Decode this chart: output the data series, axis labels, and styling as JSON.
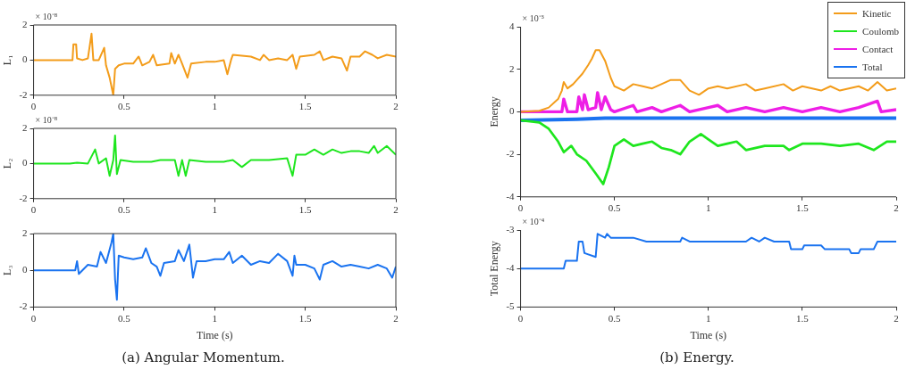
{
  "chart_data": [
    {
      "type": "line",
      "ylabel": "L₁",
      "annotations": [
        "× 10⁻⁸"
      ],
      "xlim": [
        0,
        2
      ],
      "xticks": [
        0,
        0.5,
        1,
        1.5,
        2
      ],
      "ylim": [
        -2,
        2
      ],
      "yticks": [
        -2,
        0,
        2
      ],
      "grid": false,
      "legend": false,
      "marker": "none",
      "line_style": "solid",
      "series": [
        {
          "color": "#f39c1a",
          "x": [
            0,
            0.2,
            0.215,
            0.22,
            0.235,
            0.24,
            0.27,
            0.3,
            0.32,
            0.33,
            0.36,
            0.39,
            0.4,
            0.42,
            0.44,
            0.45,
            0.47,
            0.5,
            0.55,
            0.58,
            0.6,
            0.64,
            0.66,
            0.68,
            0.75,
            0.76,
            0.78,
            0.8,
            0.82,
            0.85,
            0.87,
            0.95,
            1,
            1.05,
            1.07,
            1.09,
            1.1,
            1.2,
            1.25,
            1.27,
            1.3,
            1.35,
            1.4,
            1.43,
            1.45,
            1.47,
            1.55,
            1.58,
            1.6,
            1.65,
            1.7,
            1.73,
            1.75,
            1.8,
            1.83,
            1.87,
            1.9,
            1.95,
            2
          ],
          "values": [
            0,
            0,
            0,
            0.9,
            0.9,
            0.1,
            0,
            0.1,
            1.5,
            0,
            0,
            0.7,
            -0.3,
            -1,
            -2,
            -0.5,
            -0.3,
            -0.2,
            -0.2,
            0.2,
            -0.3,
            -0.1,
            0.3,
            -0.3,
            -0.2,
            0.4,
            -0.2,
            0.3,
            -0.2,
            -1,
            -0.2,
            -0.1,
            -0.1,
            0,
            -0.8,
            0,
            0.3,
            0.2,
            0,
            0.3,
            0,
            0.1,
            0,
            0.3,
            -0.5,
            0.2,
            0.3,
            0.5,
            0,
            0.2,
            0.1,
            -0.6,
            0.2,
            0.2,
            0.5,
            0.3,
            0.1,
            0.3,
            0.2
          ]
        }
      ]
    },
    {
      "type": "line",
      "ylabel": "L₂",
      "annotations": [
        "× 10⁻⁸"
      ],
      "xlim": [
        0,
        2
      ],
      "xticks": [
        0,
        0.5,
        1,
        1.5,
        2
      ],
      "ylim": [
        -2,
        2
      ],
      "yticks": [
        -2,
        0,
        2
      ],
      "grid": false,
      "legend": false,
      "marker": "none",
      "line_style": "solid",
      "series": [
        {
          "color": "#1ee61e",
          "x": [
            0,
            0.2,
            0.24,
            0.3,
            0.34,
            0.36,
            0.4,
            0.42,
            0.44,
            0.45,
            0.46,
            0.48,
            0.55,
            0.6,
            0.65,
            0.7,
            0.78,
            0.8,
            0.82,
            0.84,
            0.86,
            0.95,
            1,
            1.05,
            1.1,
            1.15,
            1.2,
            1.3,
            1.4,
            1.43,
            1.45,
            1.5,
            1.55,
            1.6,
            1.65,
            1.7,
            1.75,
            1.8,
            1.85,
            1.88,
            1.9,
            1.95,
            2
          ],
          "values": [
            0,
            0,
            0.05,
            0,
            0.8,
            0,
            0.3,
            -0.7,
            0.2,
            1.6,
            -0.6,
            0.2,
            0.1,
            0.1,
            0.1,
            0.2,
            0.2,
            -0.7,
            0.2,
            -0.7,
            0.2,
            0.1,
            0.1,
            0.1,
            0.2,
            -0.2,
            0.2,
            0.2,
            0.3,
            -0.7,
            0.5,
            0.5,
            0.8,
            0.5,
            0.8,
            0.6,
            0.7,
            0.7,
            0.6,
            1,
            0.6,
            1,
            0.5
          ]
        }
      ]
    },
    {
      "type": "line",
      "xlabel": "Time (s)",
      "ylabel": "L₃",
      "annotations": [
        "(a) Angular Momentum."
      ],
      "xlim": [
        0,
        2
      ],
      "xticks": [
        0,
        0.5,
        1,
        1.5,
        2
      ],
      "ylim": [
        -2,
        2
      ],
      "yticks": [
        -2,
        0,
        2
      ],
      "grid": false,
      "legend": false,
      "marker": "none",
      "line_style": "solid",
      "series": [
        {
          "color": "#1a73f0",
          "x": [
            0,
            0.2,
            0.23,
            0.24,
            0.25,
            0.3,
            0.35,
            0.37,
            0.4,
            0.43,
            0.44,
            0.45,
            0.46,
            0.47,
            0.5,
            0.55,
            0.6,
            0.62,
            0.65,
            0.68,
            0.7,
            0.72,
            0.78,
            0.8,
            0.83,
            0.86,
            0.88,
            0.9,
            0.95,
            1,
            1.05,
            1.08,
            1.1,
            1.15,
            1.2,
            1.25,
            1.3,
            1.35,
            1.4,
            1.43,
            1.44,
            1.45,
            1.5,
            1.55,
            1.58,
            1.6,
            1.65,
            1.7,
            1.75,
            1.8,
            1.85,
            1.9,
            1.95,
            1.98,
            2
          ],
          "values": [
            0,
            0,
            0,
            0.5,
            -0.2,
            0.3,
            0.2,
            1,
            0.4,
            1.5,
            2,
            -0.5,
            -1.6,
            0.8,
            0.7,
            0.6,
            0.7,
            1.2,
            0.4,
            0.2,
            -0.3,
            0.4,
            0.5,
            1.1,
            0.5,
            1.4,
            -0.4,
            0.5,
            0.5,
            0.6,
            0.6,
            1,
            0.4,
            0.8,
            0.3,
            0.5,
            0.4,
            0.9,
            0.5,
            -0.3,
            0.8,
            0.3,
            0.3,
            0.1,
            -0.5,
            0.3,
            0.5,
            0.2,
            0.3,
            0.2,
            0.1,
            0.3,
            0.1,
            -0.4,
            0.2
          ]
        }
      ]
    },
    {
      "type": "line",
      "ylabel": "Energy",
      "annotations": [
        "× 10⁻³"
      ],
      "xlim": [
        0,
        2
      ],
      "xticks": [
        0,
        0.5,
        1,
        1.5,
        2
      ],
      "ylim": [
        -4,
        4
      ],
      "yticks": [
        -4,
        -2,
        0,
        2,
        4
      ],
      "grid": false,
      "legend": "top right",
      "marker": "none",
      "line_style": "solid",
      "series": [
        {
          "name": "Kinetic",
          "color": "#f39c1a",
          "x": [
            0,
            0.1,
            0.15,
            0.2,
            0.22,
            0.23,
            0.25,
            0.28,
            0.3,
            0.33,
            0.36,
            0.38,
            0.4,
            0.42,
            0.45,
            0.48,
            0.5,
            0.55,
            0.6,
            0.65,
            0.7,
            0.75,
            0.8,
            0.85,
            0.9,
            0.95,
            1,
            1.05,
            1.1,
            1.2,
            1.25,
            1.3,
            1.4,
            1.45,
            1.5,
            1.6,
            1.65,
            1.7,
            1.8,
            1.85,
            1.9,
            1.95,
            2
          ],
          "values": [
            0,
            0.05,
            0.2,
            0.6,
            1,
            1.4,
            1.1,
            1.3,
            1.5,
            1.8,
            2.2,
            2.5,
            2.9,
            2.9,
            2.4,
            1.6,
            1.2,
            1,
            1.3,
            1.2,
            1.1,
            1.3,
            1.5,
            1.5,
            1,
            0.8,
            1.1,
            1.2,
            1.1,
            1.3,
            1,
            1.1,
            1.3,
            1,
            1.2,
            1,
            1.2,
            1,
            1.2,
            1,
            1.4,
            1,
            1.1
          ]
        },
        {
          "name": "Coulomb",
          "color": "#1ee61e",
          "x": [
            0,
            0.1,
            0.15,
            0.2,
            0.23,
            0.27,
            0.3,
            0.35,
            0.4,
            0.44,
            0.47,
            0.5,
            0.55,
            0.6,
            0.65,
            0.7,
            0.75,
            0.8,
            0.85,
            0.9,
            0.96,
            1,
            1.05,
            1.1,
            1.15,
            1.2,
            1.3,
            1.4,
            1.43,
            1.5,
            1.6,
            1.7,
            1.8,
            1.88,
            1.95,
            2
          ],
          "values": [
            -0.4,
            -0.5,
            -0.8,
            -1.4,
            -1.9,
            -1.6,
            -2,
            -2.3,
            -2.9,
            -3.4,
            -2.6,
            -1.6,
            -1.3,
            -1.6,
            -1.5,
            -1.4,
            -1.7,
            -1.8,
            -2,
            -1.4,
            -1.05,
            -1.3,
            -1.6,
            -1.5,
            -1.4,
            -1.8,
            -1.6,
            -1.6,
            -1.8,
            -1.5,
            -1.5,
            -1.6,
            -1.5,
            -1.8,
            -1.4,
            -1.4
          ]
        },
        {
          "name": "Contact",
          "color": "#ee1ee6",
          "x": [
            0,
            0.22,
            0.23,
            0.25,
            0.3,
            0.31,
            0.33,
            0.34,
            0.36,
            0.4,
            0.41,
            0.43,
            0.45,
            0.48,
            0.5,
            0.6,
            0.62,
            0.7,
            0.75,
            0.85,
            0.9,
            1,
            1.05,
            1.1,
            1.2,
            1.3,
            1.4,
            1.5,
            1.6,
            1.7,
            1.8,
            1.9,
            1.92,
            2
          ],
          "values": [
            0,
            0,
            0.6,
            0,
            0,
            0.7,
            0.1,
            0.8,
            0.1,
            0.2,
            0.9,
            0.1,
            0.7,
            0.1,
            0,
            0.3,
            0,
            0.2,
            0,
            0.3,
            0,
            0.2,
            0.3,
            0,
            0.2,
            0,
            0.2,
            0,
            0.2,
            0,
            0.2,
            0.5,
            0,
            0.1
          ]
        },
        {
          "name": "Total",
          "color": "#1a73f0",
          "x": [
            0,
            0.3,
            0.45,
            2
          ],
          "values": [
            -0.4,
            -0.35,
            -0.3,
            -0.3
          ]
        }
      ]
    },
    {
      "type": "line",
      "xlabel": "Time (s)",
      "ylabel": "Total Energy",
      "annotations": [
        "× 10⁻⁴",
        "(b) Energy."
      ],
      "xlim": [
        0,
        2
      ],
      "xticks": [
        0,
        0.5,
        1,
        1.5,
        2
      ],
      "ylim": [
        -5,
        -3
      ],
      "yticks": [
        -5,
        -4,
        -3
      ],
      "grid": false,
      "legend": false,
      "marker": "none",
      "line_style": "solid",
      "series": [
        {
          "color": "#1a73f0",
          "x": [
            0,
            0.23,
            0.24,
            0.3,
            0.31,
            0.33,
            0.34,
            0.4,
            0.41,
            0.45,
            0.46,
            0.48,
            0.6,
            0.67,
            0.85,
            0.86,
            0.9,
            1.2,
            1.23,
            1.27,
            1.3,
            1.35,
            1.43,
            1.44,
            1.5,
            1.51,
            1.6,
            1.62,
            1.75,
            1.76,
            1.8,
            1.81,
            1.88,
            1.9,
            2
          ],
          "values": [
            -4,
            -4,
            -3.8,
            -3.8,
            -3.3,
            -3.3,
            -3.6,
            -3.7,
            -3.1,
            -3.2,
            -3.1,
            -3.2,
            -3.2,
            -3.3,
            -3.3,
            -3.2,
            -3.3,
            -3.3,
            -3.2,
            -3.3,
            -3.2,
            -3.3,
            -3.3,
            -3.5,
            -3.5,
            -3.4,
            -3.4,
            -3.5,
            -3.5,
            -3.6,
            -3.6,
            -3.5,
            -3.5,
            -3.3,
            -3.3
          ]
        }
      ]
    }
  ]
}
